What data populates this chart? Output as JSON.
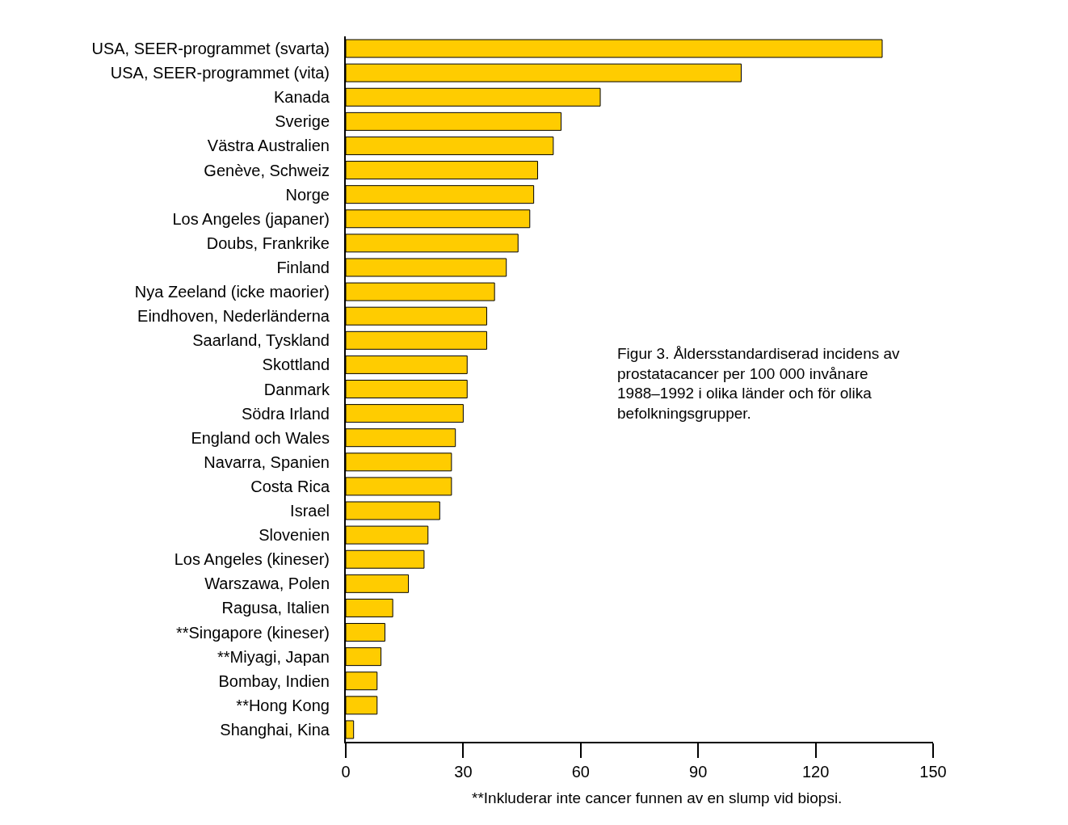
{
  "chart_data": {
    "type": "bar",
    "orientation": "horizontal",
    "categories": [
      "USA, SEER-programmet (svarta)",
      "USA, SEER-programmet (vita)",
      "Kanada",
      "Sverige",
      "Västra Australien",
      "Genève, Schweiz",
      "Norge",
      "Los Angeles (japaner)",
      "Doubs, Frankrike",
      "Finland",
      "Nya Zeeland (icke maorier)",
      "Eindhoven, Nederländerna",
      "Saarland, Tyskland",
      "Skottland",
      "Danmark",
      "Södra Irland",
      "England och Wales",
      "Navarra, Spanien",
      "Costa Rica",
      "Israel",
      "Slovenien",
      "Los Angeles (kineser)",
      "Warszawa, Polen",
      "Ragusa, Italien",
      "**Singapore (kineser)",
      "**Miyagi, Japan",
      "Bombay, Indien",
      "**Hong Kong",
      "Shanghai, Kina"
    ],
    "values": [
      137,
      101,
      65,
      55,
      53,
      49,
      48,
      47,
      44,
      41,
      38,
      36,
      36,
      31,
      31,
      30,
      28,
      27,
      27,
      24,
      21,
      20,
      16,
      12,
      10,
      9,
      8,
      8,
      2
    ],
    "color": "#ffcc00",
    "xlim": [
      0,
      150
    ],
    "xticks": [
      0,
      30,
      60,
      90,
      120,
      150
    ],
    "grid": false,
    "annotations": [
      "Figur 3. Åldersstandardiserad incidens av prostatacancer per 100 000 invånare 1988–1992 i olika länder och för olika befolkningsgrupper.",
      "**Inkluderar inte cancer funnen av en slump vid biopsi."
    ]
  }
}
